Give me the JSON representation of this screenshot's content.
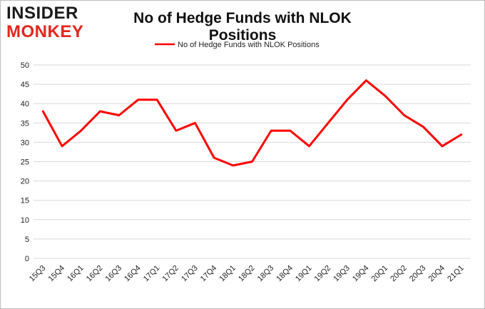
{
  "logo": {
    "line1": "INSIDER",
    "line2": "MONKEY"
  },
  "chart_data": {
    "type": "line",
    "title": "No of Hedge Funds with NLOK Positions",
    "xlabel": "",
    "ylabel": "",
    "ylim": [
      0,
      50
    ],
    "yticks": [
      0,
      5,
      10,
      15,
      20,
      25,
      30,
      35,
      40,
      45,
      50
    ],
    "grid": true,
    "legend_position": "top",
    "categories": [
      "15Q3",
      "15Q4",
      "16Q1",
      "16Q2",
      "16Q3",
      "16Q4",
      "17Q1",
      "17Q2",
      "17Q3",
      "17Q4",
      "18Q1",
      "18Q2",
      "18Q3",
      "18Q4",
      "19Q1",
      "19Q2",
      "19Q3",
      "19Q4",
      "20Q1",
      "20Q2",
      "20Q3",
      "20Q4",
      "21Q1"
    ],
    "series": [
      {
        "name": "No of Hedge Funds with NLOK Positions",
        "color": "#ff0000",
        "values": [
          38,
          29,
          33,
          38,
          37,
          41,
          41,
          33,
          35,
          26,
          24,
          25,
          33,
          33,
          29,
          35,
          41,
          46,
          42,
          37,
          34,
          29,
          32
        ]
      }
    ]
  }
}
